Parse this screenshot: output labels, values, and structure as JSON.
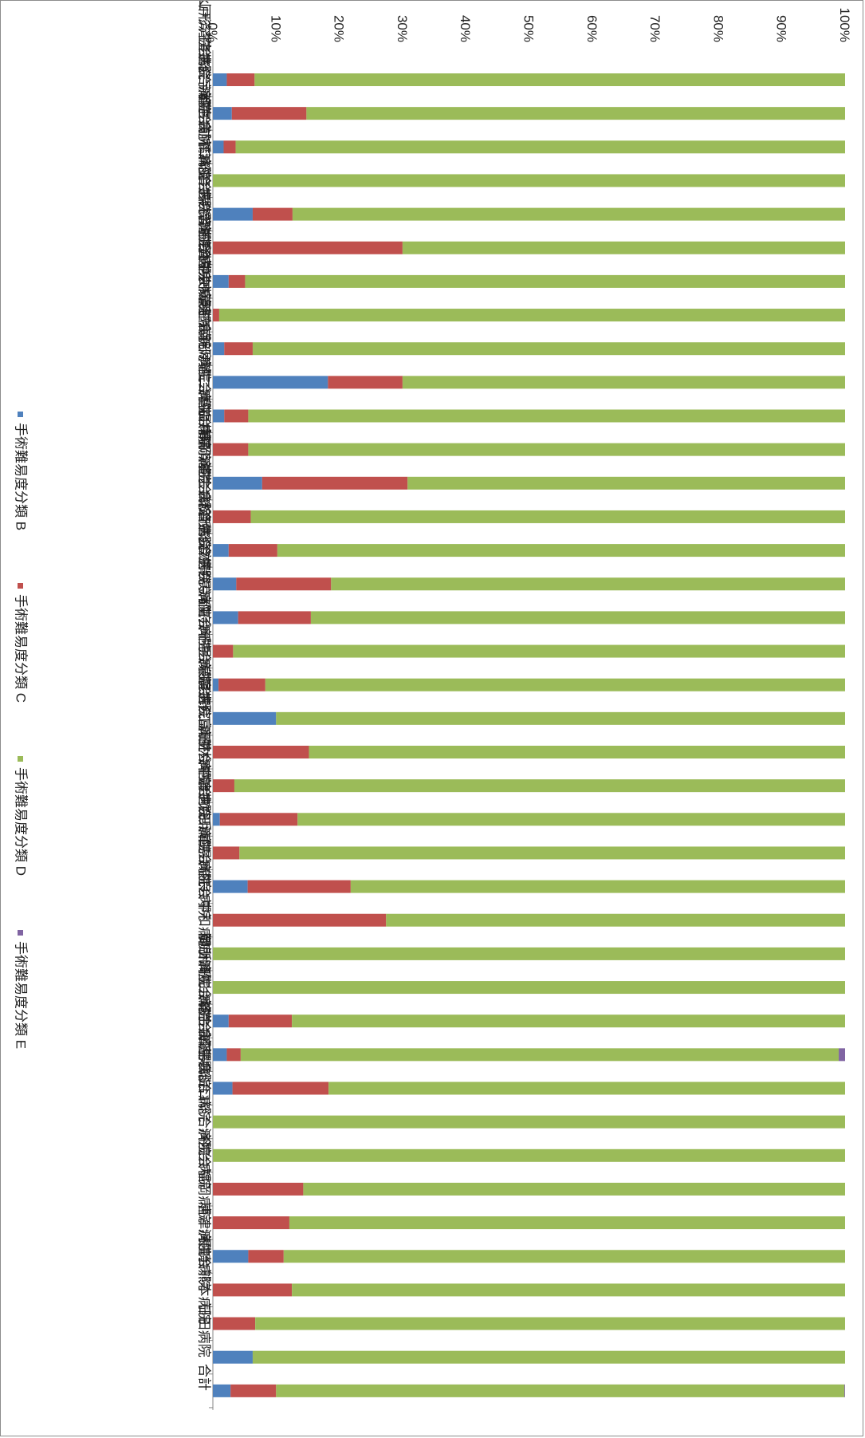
{
  "chart_data": {
    "type": "bar",
    "orientation": "horizontal-stacked-percent",
    "image_rotation": "rotated 90 degrees clockwise",
    "title": "",
    "xlabel": "",
    "ylabel": "",
    "xlim": [
      0,
      100
    ],
    "x_ticks": [
      "0%",
      "10%",
      "20%",
      "30%",
      "40%",
      "50%",
      "60%",
      "70%",
      "80%",
      "90%",
      "100%"
    ],
    "grid": false,
    "legend_position": "bottom",
    "categories": [
      "済生会山形済生病院",
      "水戸済生会総合病院",
      "済生会宇都宮病院",
      "済生会前橋病院",
      "済生会川口総合病院",
      "済生会栗橋病院",
      "済生会習志野病院",
      "済生会中央病院",
      "済生会横浜市東部病院",
      "済生会横浜市南部病院",
      "済生会新潟第二病院",
      "済生会富山病院",
      "済生会高岡病院",
      "福井県済生会病院",
      "静岡済生会総合病院",
      "済生会松阪総合病院",
      "済生会滋賀県病院",
      "済生会京都府病院",
      "済生会千里病院",
      "済生会泉尾病院",
      "済生会野江病院",
      "済生会富田林病院",
      "済生会中津病院",
      "済生会吹田病院",
      "済生会兵庫県病院",
      "済生会奈良病院",
      "済生会中和病院",
      "御所病院",
      "和歌山病院",
      "岡山済生会総合病院",
      "済生会広島病院",
      "済生会下関総合病院",
      "済生会山口総合病院",
      "今治病院",
      "済生会福岡病院",
      "唐津病院",
      "長崎病院",
      "済生会熊本病院",
      "日田病院",
      "合計"
    ],
    "series": [
      {
        "name": "手術難易度分類 B",
        "color": "#4f81bd",
        "values": [
          2.2,
          3.0,
          1.7,
          0,
          6.3,
          0,
          2.5,
          0,
          1.8,
          18.2,
          1.8,
          0,
          7.8,
          0,
          2.5,
          3.7,
          4.0,
          0,
          0.9,
          10.0,
          0,
          0,
          1.1,
          0,
          5.5,
          0,
          0,
          0,
          2.5,
          2.2,
          3.1,
          0,
          0,
          0,
          0,
          5.6,
          0,
          0,
          6.3,
          2.8
        ]
      },
      {
        "name": "手術難易度分類 C",
        "color": "#c0504d",
        "values": [
          4.4,
          11.8,
          1.9,
          0,
          6.3,
          30.0,
          2.6,
          1.0,
          4.5,
          11.8,
          3.8,
          5.6,
          23.0,
          6.0,
          7.7,
          15.0,
          11.5,
          3.2,
          7.4,
          0,
          15.2,
          3.4,
          12.3,
          4.2,
          16.3,
          27.4,
          0,
          0,
          10.0,
          2.2,
          15.2,
          0,
          0,
          14.3,
          12.1,
          5.6,
          12.5,
          6.7,
          0,
          7.2
        ]
      },
      {
        "name": "手術難易度分類 D",
        "color": "#9bbb59",
        "values": [
          93.4,
          85.2,
          96.4,
          100,
          87.4,
          70.0,
          94.9,
          99.0,
          93.7,
          70.0,
          94.4,
          94.4,
          69.2,
          94.0,
          89.8,
          81.3,
          84.5,
          96.8,
          91.7,
          90.0,
          84.8,
          96.6,
          86.6,
          95.8,
          78.2,
          72.6,
          100,
          100,
          87.5,
          94.6,
          81.7,
          100,
          100,
          85.7,
          87.9,
          88.8,
          87.5,
          93.3,
          93.7,
          89.9
        ]
      },
      {
        "name": "手術難易度分類 E",
        "color": "#8064a2",
        "values": [
          0,
          0,
          0,
          0,
          0,
          0,
          0,
          0,
          0,
          0,
          0,
          0,
          0,
          0,
          0,
          0,
          0,
          0,
          0,
          0,
          0,
          0,
          0,
          0,
          0,
          0,
          0,
          0,
          0,
          1.0,
          0,
          0,
          0,
          0,
          0,
          0,
          0,
          0,
          0,
          0.1
        ]
      }
    ]
  }
}
